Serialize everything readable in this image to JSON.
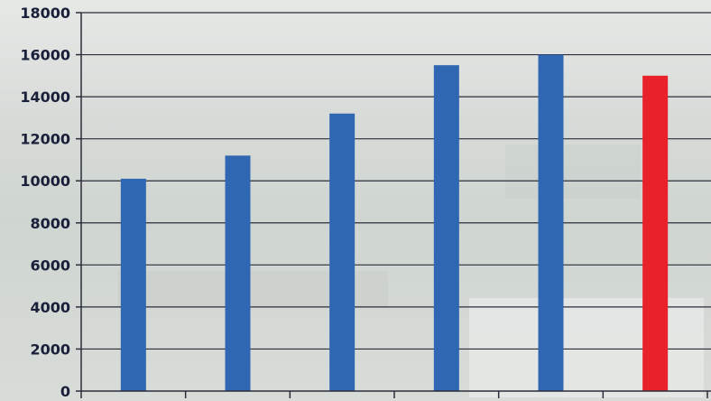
{
  "chart_data": {
    "type": "bar",
    "categories": [
      "",
      "",
      "",
      "",
      "",
      ""
    ],
    "values": [
      10100,
      11200,
      13200,
      15500,
      16000,
      15000
    ],
    "colors": [
      "#2f67b3",
      "#2f67b3",
      "#2f67b3",
      "#2f67b3",
      "#2f67b3",
      "#e8212a"
    ],
    "title": "",
    "xlabel": "",
    "ylabel": "",
    "ylim": [
      0,
      18000
    ],
    "yticks": [
      "0",
      "2000",
      "4000",
      "6000",
      "8000",
      "10000",
      "12000",
      "14000",
      "16000",
      "18000"
    ],
    "grid": true,
    "legend": "none"
  }
}
